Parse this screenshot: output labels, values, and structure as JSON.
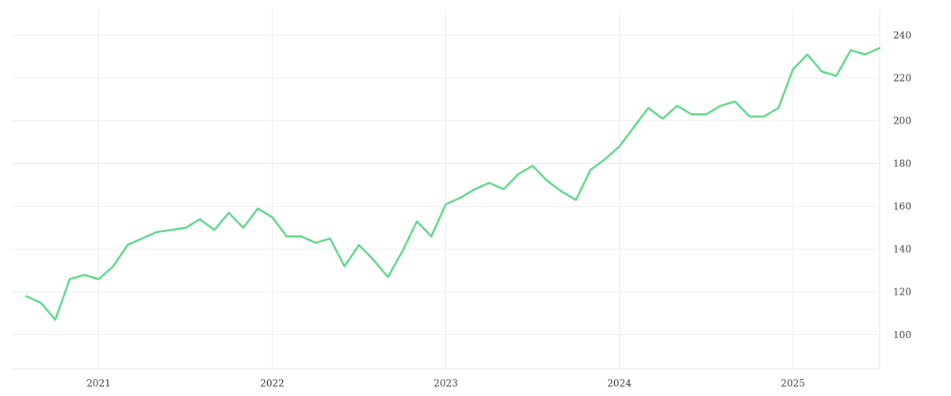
{
  "chart_data": {
    "type": "line",
    "title": "",
    "xlabel": "",
    "ylabel": "",
    "grid": true,
    "y_axis_side": "right",
    "xlim": [
      "2020-07",
      "2025-07"
    ],
    "ylim": [
      84,
      252
    ],
    "x_ticks": [
      "2021",
      "2022",
      "2023",
      "2024",
      "2025"
    ],
    "y_ticks": [
      100,
      120,
      140,
      160,
      180,
      200,
      220,
      240
    ],
    "colors": {
      "series": "#5cd685"
    },
    "series": [
      {
        "x": [
          "2020-08",
          "2020-09",
          "2020-10",
          "2020-11",
          "2020-12",
          "2021-01",
          "2021-02",
          "2021-03",
          "2021-04",
          "2021-05",
          "2021-06",
          "2021-07",
          "2021-08",
          "2021-09",
          "2021-10",
          "2021-11",
          "2021-12",
          "2022-01",
          "2022-02",
          "2022-03",
          "2022-04",
          "2022-05",
          "2022-06",
          "2022-07",
          "2022-08",
          "2022-09",
          "2022-10",
          "2022-11",
          "2022-12",
          "2023-01",
          "2023-02",
          "2023-03",
          "2023-04",
          "2023-05",
          "2023-06",
          "2023-07",
          "2023-08",
          "2023-09",
          "2023-10",
          "2023-11",
          "2023-12",
          "2024-01",
          "2024-02",
          "2024-03",
          "2024-04",
          "2024-05",
          "2024-06",
          "2024-07",
          "2024-08",
          "2024-09",
          "2024-10",
          "2024-11",
          "2024-12",
          "2025-01",
          "2025-02",
          "2025-03",
          "2025-04",
          "2025-05",
          "2025-06",
          "2025-07"
        ],
        "values": [
          118,
          115,
          107,
          126,
          128,
          126,
          132,
          142,
          145,
          148,
          149,
          150,
          154,
          149,
          157,
          150,
          159,
          155,
          146,
          146,
          143,
          145,
          132,
          142,
          135,
          127,
          139,
          153,
          146,
          161,
          164,
          168,
          171,
          168,
          175,
          179,
          172,
          167,
          163,
          177,
          182,
          188,
          197,
          206,
          201,
          207,
          203,
          203,
          207,
          209,
          202,
          202,
          206,
          224,
          231,
          223,
          221,
          233,
          231,
          234
        ]
      }
    ]
  }
}
